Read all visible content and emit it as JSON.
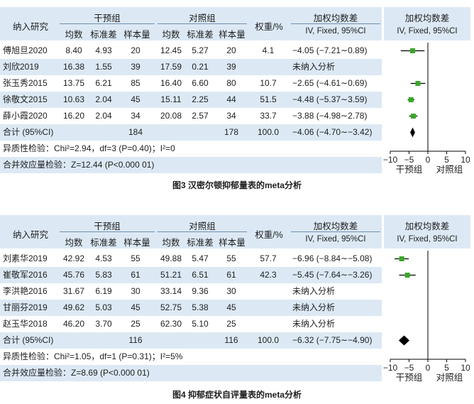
{
  "figures": [
    {
      "header": {
        "study": "纳入研究",
        "intervention": "干预组",
        "control": "对照组",
        "weight": "权重/%",
        "wmd": "加权均数差",
        "ci_label": "IV, Fixed, 95%CI",
        "plot_title": "加权均数差",
        "plot_ci_label": "IV, Fixed, 95%CI",
        "sub": [
          "均数",
          "标准差",
          "样本量",
          "均数",
          "标准差",
          "样本量"
        ]
      },
      "rows": [
        {
          "study": "傅旭旦2020",
          "m1": "8.40",
          "sd1": "4.93",
          "n1": "20",
          "m2": "12.45",
          "sd2": "5.27",
          "n2": "20",
          "weight": "4.1",
          "effect": "−4.05 (−7.21∼0.89)"
        },
        {
          "study": "刘欣2019",
          "m1": "16.38",
          "sd1": "1.55",
          "n1": "39",
          "m2": "17.59",
          "sd2": "0.21",
          "n2": "39",
          "weight": "",
          "effect": "未纳入分析"
        },
        {
          "study": "张玉秀2015",
          "m1": "13.75",
          "sd1": "6.21",
          "n1": "85",
          "m2": "16.40",
          "sd2": "6.60",
          "n2": "80",
          "weight": "10.7",
          "effect": "−2.65 (−4.61∼0.69)"
        },
        {
          "study": "徐敬文2015",
          "m1": "10.63",
          "sd1": "2.04",
          "n1": "45",
          "m2": "15.11",
          "sd2": "2.25",
          "n2": "44",
          "weight": "51.5",
          "effect": "−4.48 (−5.37∼3.59)"
        },
        {
          "study": "薛小霞2020",
          "m1": "16.20",
          "sd1": "2.04",
          "n1": "34",
          "m2": "20.08",
          "sd2": "2.57",
          "n2": "34",
          "weight": "33.7",
          "effect": "−3.88 (−4.98∼2.78)"
        },
        {
          "study": "合计 (95%CI)",
          "m1": "",
          "sd1": "",
          "n1": "184",
          "m2": "",
          "sd2": "",
          "n2": "178",
          "weight": "100.0",
          "effect": "−4.06 (−4.70∼−3.42)"
        }
      ],
      "heterogeneity": "异质性检验：Chi²=2.94，df=3 (P=0.40)；I²=0",
      "overall": "合并效应量检验：Z=12.44 (P<0.000 01)",
      "caption": "图3 汉密尔顿抑郁量表的meta分析",
      "chart_data": {
        "type": "scatter",
        "xlim": [
          -10,
          10
        ],
        "ticks": [
          "−10",
          "−5",
          "0",
          "5",
          "10"
        ],
        "tick_values": [
          -10,
          -5,
          0,
          5,
          10
        ],
        "left_label": "干预组",
        "right_label": "对照组",
        "estimates": [
          {
            "row": 0,
            "est": -4.05,
            "lo": -7.21,
            "hi": -0.89
          },
          {
            "row": 2,
            "est": -2.65,
            "lo": -4.61,
            "hi": -0.69
          },
          {
            "row": 3,
            "est": -4.48,
            "lo": -5.37,
            "hi": -3.59
          },
          {
            "row": 4,
            "est": -3.88,
            "lo": -4.98,
            "hi": -2.78
          }
        ],
        "pooled": {
          "row": 5,
          "est": -4.06,
          "lo": -4.7,
          "hi": -3.42
        },
        "colors": {
          "square": "#3aa629",
          "line": "#000000",
          "diamond": "#000000"
        }
      }
    },
    {
      "header": {
        "study": "纳入研究",
        "intervention": "干预组",
        "control": "对照组",
        "weight": "权重/%",
        "wmd": "加权均数差",
        "ci_label": "IV, Fixed, 95%CI",
        "plot_title": "加权均数差",
        "plot_ci_label": "IV, Fixed, 95%CI",
        "sub": [
          "均数",
          "标准差",
          "样本量",
          "均数",
          "标准差",
          "样本量"
        ]
      },
      "rows": [
        {
          "study": "刘素华2019",
          "m1": "42.92",
          "sd1": "4.53",
          "n1": "55",
          "m2": "49.88",
          "sd2": "5.47",
          "n2": "55",
          "weight": "57.7",
          "effect": "−6.96 (−8.84∼−5.08)"
        },
        {
          "study": "崔敬军2016",
          "m1": "45.76",
          "sd1": "5.83",
          "n1": "61",
          "m2": "51.21",
          "sd2": "6.51",
          "n2": "61",
          "weight": "42.3",
          "effect": "−5.45 (−7.64∼−3.26)"
        },
        {
          "study": "李洪艳2016",
          "m1": "31.67",
          "sd1": "6.19",
          "n1": "30",
          "m2": "33.14",
          "sd2": "9.36",
          "n2": "30",
          "weight": "",
          "effect": "未纳入分析"
        },
        {
          "study": "甘丽芬2019",
          "m1": "49.62",
          "sd1": "5.03",
          "n1": "45",
          "m2": "52.75",
          "sd2": "5.38",
          "n2": "45",
          "weight": "",
          "effect": "未纳入分析"
        },
        {
          "study": "赵玉华2018",
          "m1": "46.20",
          "sd1": "3.70",
          "n1": "25",
          "m2": "62.30",
          "sd2": "5.10",
          "n2": "25",
          "weight": "",
          "effect": "未纳入分析"
        },
        {
          "study": "合计 (95%CI)",
          "m1": "",
          "sd1": "",
          "n1": "116",
          "m2": "",
          "sd2": "",
          "n2": "116",
          "weight": "100.0",
          "effect": "−6.32 (−7.75∼−4.90)"
        }
      ],
      "heterogeneity": "异质性检验：Chi²=1.05，df=1 (P=0.31)；I²=5%",
      "overall": "合并效应量检验：Z=8.69 (P<0.000 01)",
      "caption": "图4 抑郁症状自评量表的meta分析",
      "chart_data": {
        "type": "scatter",
        "xlim": [
          -10,
          10
        ],
        "ticks": [
          "−10",
          "−5",
          "0",
          "5",
          "10"
        ],
        "tick_values": [
          -10,
          -5,
          0,
          5,
          10
        ],
        "left_label": "干预组",
        "right_label": "对照组",
        "estimates": [
          {
            "row": 0,
            "est": -6.96,
            "lo": -8.84,
            "hi": -5.08
          },
          {
            "row": 1,
            "est": -5.45,
            "lo": -7.64,
            "hi": -3.26
          }
        ],
        "pooled": {
          "row": 5,
          "est": -6.32,
          "lo": -7.75,
          "hi": -4.9
        },
        "colors": {
          "square": "#3aa629",
          "line": "#000000",
          "diamond": "#000000"
        }
      }
    }
  ]
}
